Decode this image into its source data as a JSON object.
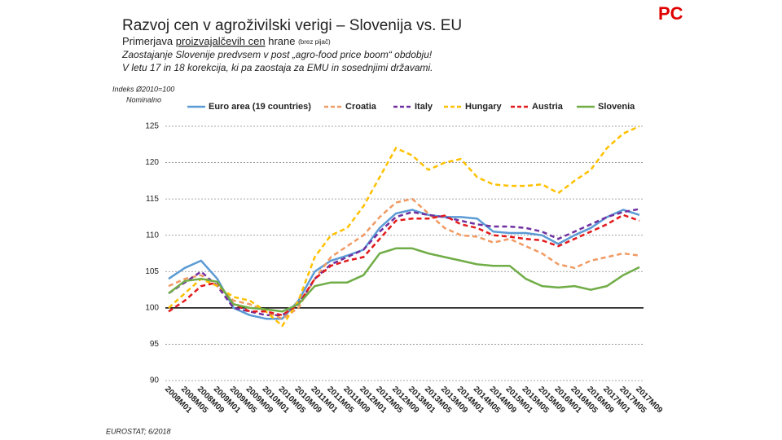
{
  "header": {
    "title": "Razvoj cen v agroživilski verigi – Slovenija vs. EU",
    "badge": "PC",
    "subtitle": {
      "lead": "Primerjava",
      "underlined": "proizvajalčevih cen",
      "tail": "hrane",
      "note": "(brez pijač)"
    },
    "lines": [
      "Zaostajanje Slovenije predvsem v post „agro-food price boom“ obdobju!",
      "V letu 17 in 18 korekcija, ki pa zaostaja za EMU in sosednjimi državami."
    ]
  },
  "chart_data": {
    "type": "line",
    "axis_notes": [
      "Indeks Ø2010=100",
      "Nominalno"
    ],
    "categories": [
      "2008M01",
      "2008M05",
      "2008M09",
      "2009M01",
      "2009M05",
      "2009M09",
      "2010M01",
      "2010M05",
      "2010M09",
      "2011M01",
      "2011M05",
      "2011M09",
      "2012M01",
      "2012M05",
      "2012M09",
      "2013M01",
      "2013M05",
      "2013M09",
      "2014M01",
      "2014M05",
      "2014M09",
      "2015M01",
      "2015M05",
      "2015M09",
      "2016M01",
      "2016M05",
      "2016M09",
      "2017M01",
      "2017M05",
      "2017M09"
    ],
    "series": [
      {
        "name": "Euro area (19 countries)",
        "color": "#5b9bd5",
        "dashed": false,
        "values": [
          104,
          105.5,
          106.5,
          104,
          100,
          99,
          98.5,
          98.5,
          101,
          105,
          106.5,
          107.2,
          108,
          111,
          113,
          113.5,
          112.8,
          112.5,
          112.5,
          112.3,
          110.5,
          110.3,
          110.3,
          110,
          108.8,
          110,
          111,
          112.5,
          113.5,
          112.8
        ]
      },
      {
        "name": "Croatia",
        "color": "#f19a62",
        "dashed": true,
        "values": [
          103,
          104,
          104.5,
          103,
          101,
          100.5,
          99.5,
          98.5,
          100,
          104,
          107,
          108.5,
          110,
          112.5,
          114.5,
          115,
          113,
          111,
          110,
          109.8,
          109,
          109.5,
          108.5,
          107.5,
          106,
          105.5,
          106.5,
          107,
          107.5,
          107.2
        ]
      },
      {
        "name": "Italy",
        "color": "#7030a0",
        "dashed": true,
        "values": [
          102,
          103.5,
          105,
          103,
          100,
          99.5,
          99,
          99,
          100.5,
          104,
          106,
          107,
          108,
          110.5,
          112.5,
          113.2,
          112.8,
          112.5,
          112,
          111.5,
          111.2,
          111.2,
          111,
          110.5,
          109.5,
          110.5,
          111.5,
          112.5,
          113.2,
          113.6
        ]
      },
      {
        "name": "Hungary",
        "color": "#ffc000",
        "dashed": true,
        "values": [
          100,
          102,
          104,
          103,
          101.5,
          101,
          99.5,
          97.5,
          101,
          107,
          110,
          111,
          114,
          118,
          122,
          121,
          119,
          120,
          120.5,
          118,
          117,
          116.8,
          116.8,
          117,
          115.8,
          117.5,
          119,
          122,
          124,
          125
        ]
      },
      {
        "name": "Austria",
        "color": "#e31a1c",
        "dashed": true,
        "values": [
          99.5,
          101,
          103,
          103.5,
          100.5,
          99.5,
          99.5,
          99,
          100.5,
          104,
          105.8,
          106.5,
          107,
          109.5,
          112,
          112.3,
          112.3,
          112.7,
          111.5,
          111,
          110,
          109.8,
          109.5,
          109.3,
          108.5,
          109.5,
          110.5,
          111.5,
          112.8,
          112
        ]
      },
      {
        "name": "Slovenia",
        "color": "#70ad47",
        "dashed": false,
        "values": [
          102,
          103.7,
          104,
          103.6,
          100.5,
          100,
          99.8,
          99.5,
          100.5,
          103,
          103.5,
          103.5,
          104.5,
          107.5,
          108.2,
          108.2,
          107.5,
          107,
          106.5,
          106,
          105.8,
          105.8,
          104,
          103,
          102.8,
          103,
          102.5,
          103,
          104.5,
          105.6
        ]
      }
    ],
    "ylim": [
      90,
      125
    ],
    "yticks": [
      90,
      95,
      100,
      105,
      110,
      115,
      120,
      125
    ],
    "baseline": 100,
    "grid": true,
    "legend": "top"
  },
  "footer": {
    "source": "EUROSTAT; 6/2018"
  }
}
